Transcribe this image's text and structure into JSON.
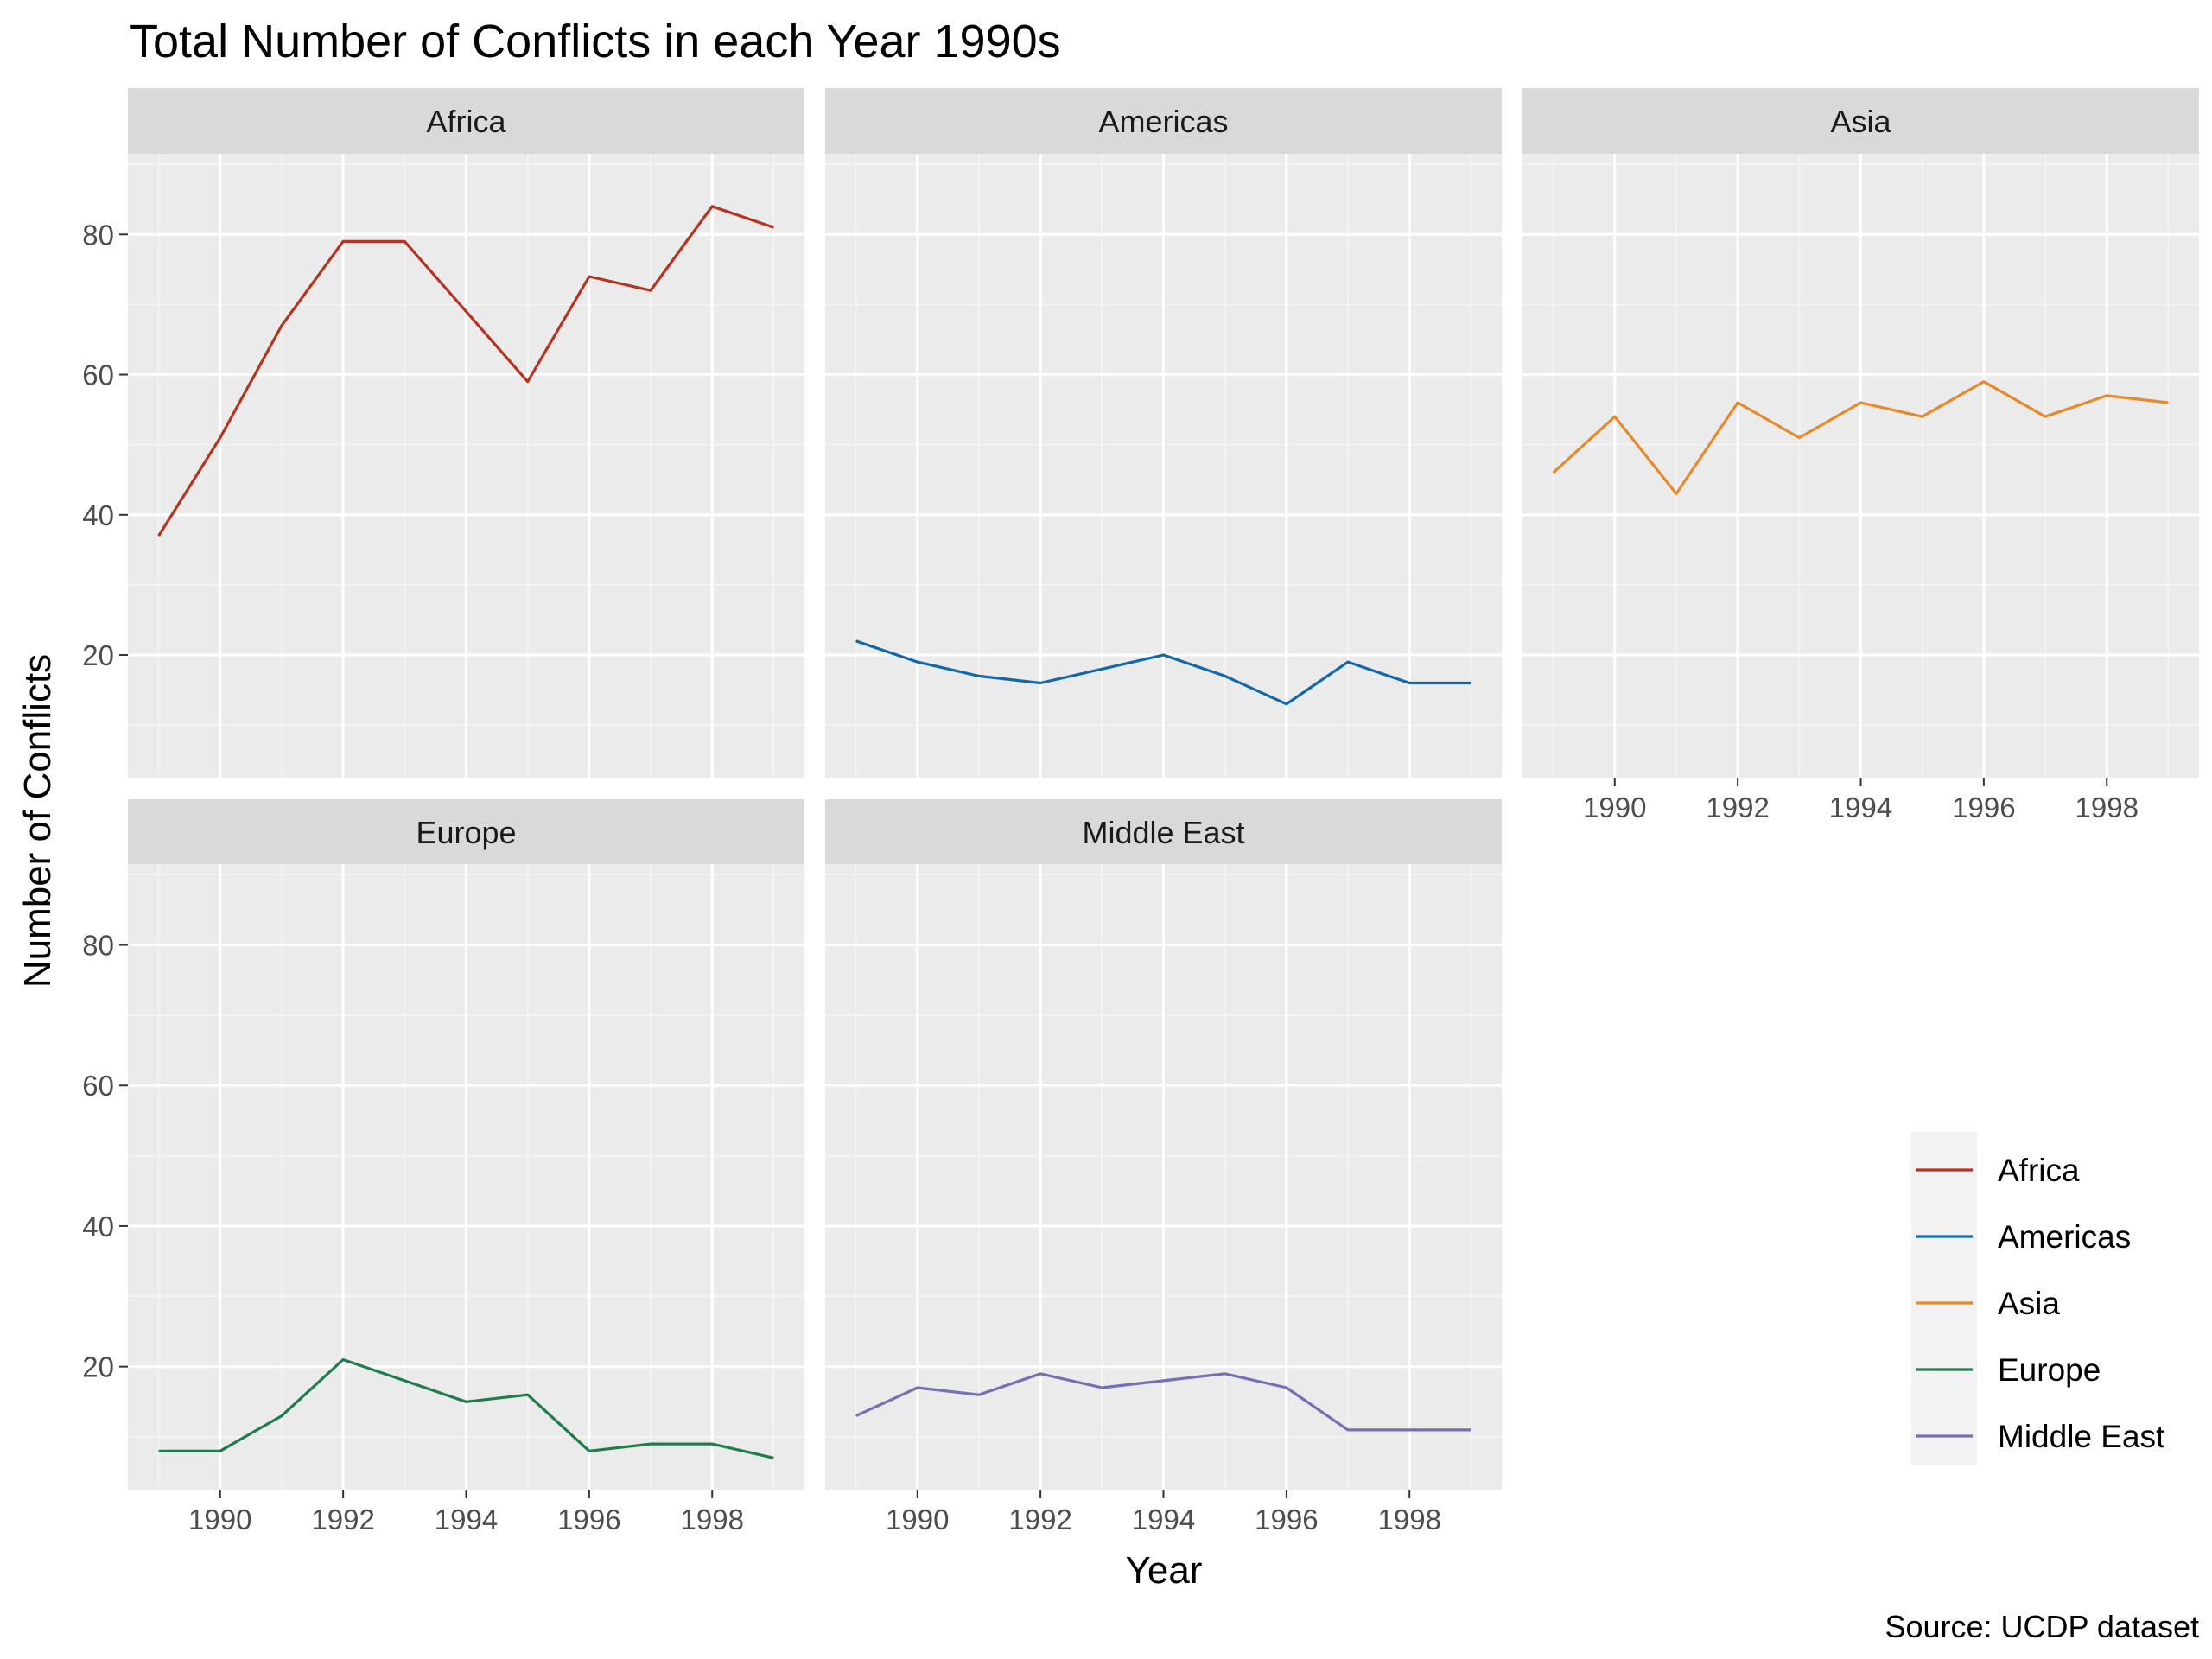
{
  "chart_data": {
    "type": "line",
    "title": "Total Number of Conflicts in each Year 1990s",
    "xlabel": "Year",
    "ylabel": "Number of Conflicts",
    "caption": "Source: UCDP dataset",
    "x": [
      1989,
      1990,
      1991,
      1992,
      1993,
      1994,
      1995,
      1996,
      1997,
      1998,
      1999
    ],
    "x_ticks": [
      1990,
      1992,
      1994,
      1996,
      1998
    ],
    "y_ticks": [
      20,
      40,
      60,
      80
    ],
    "xlim": [
      1988.5,
      1999.5
    ],
    "ylim": [
      2.5,
      91.5
    ],
    "grid": true,
    "legend_position": "right",
    "series": [
      {
        "name": "Africa",
        "color": "#B5331F",
        "values": [
          37,
          51,
          67,
          79,
          79,
          69,
          59,
          74,
          72,
          84,
          81
        ]
      },
      {
        "name": "Americas",
        "color": "#1268A8",
        "values": [
          22,
          19,
          17,
          16,
          18,
          20,
          17,
          13,
          19,
          16,
          16
        ]
      },
      {
        "name": "Asia",
        "color": "#E58A2B",
        "values": [
          46,
          54,
          43,
          56,
          51,
          56,
          54,
          59,
          54,
          57,
          56
        ]
      },
      {
        "name": "Europe",
        "color": "#1E7E4A",
        "values": [
          8,
          8,
          13,
          21,
          18,
          15,
          16,
          8,
          9,
          9,
          7
        ]
      },
      {
        "name": "Middle East",
        "color": "#7570B3",
        "values": [
          13,
          17,
          16,
          19,
          17,
          18,
          19,
          17,
          11,
          11,
          11
        ]
      }
    ]
  }
}
